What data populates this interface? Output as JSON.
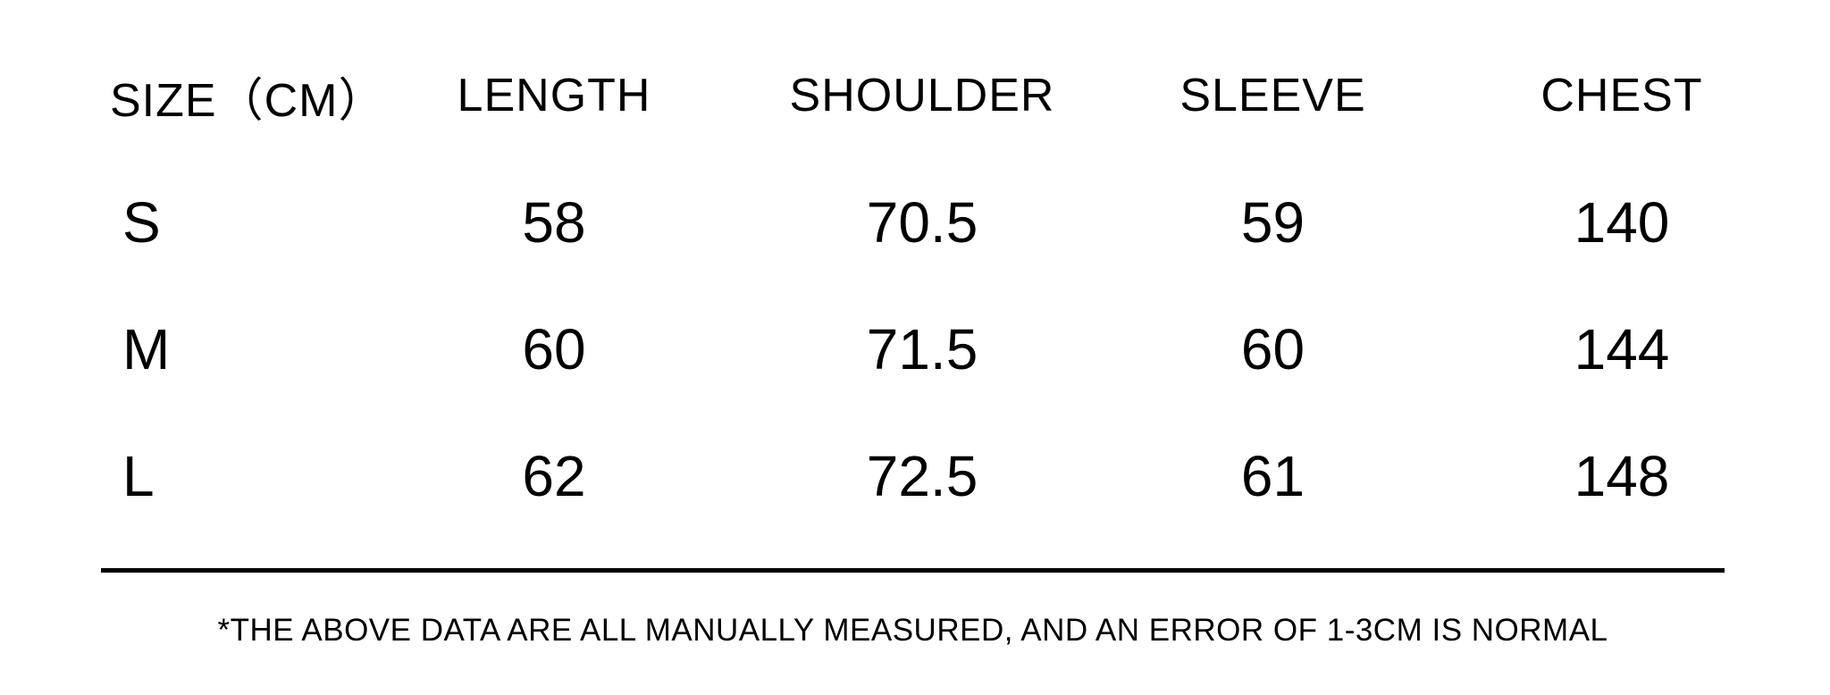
{
  "colors": {
    "background": "#ffffff",
    "text": "#000000",
    "divider": "#000000"
  },
  "table": {
    "headers": [
      "SIZE（CM）",
      "LENGTH",
      "SHOULDER",
      "SLEEVE",
      "CHEST"
    ],
    "rows": [
      [
        "S",
        "58",
        "70.5",
        "59",
        "140"
      ],
      [
        "M",
        "60",
        "71.5",
        "60",
        "144"
      ],
      [
        "L",
        "62",
        "72.5",
        "61",
        "148"
      ]
    ]
  },
  "footnote": "*THE ABOVE DATA ARE ALL MANUALLY MEASURED, AND AN ERROR OF 1-3CM IS NORMAL",
  "chart_data": {
    "type": "table",
    "title": "Garment size chart",
    "units": "cm",
    "columns": [
      "SIZE（CM）",
      "LENGTH",
      "SHOULDER",
      "SLEEVE",
      "CHEST"
    ],
    "rows": [
      [
        "S",
        58,
        70.5,
        59,
        140
      ],
      [
        "M",
        60,
        71.5,
        60,
        144
      ],
      [
        "L",
        62,
        72.5,
        61,
        148
      ]
    ],
    "notes": "*THE ABOVE DATA ARE ALL MANUALLY MEASURED, AND AN ERROR OF 1-3CM IS NORMAL"
  }
}
